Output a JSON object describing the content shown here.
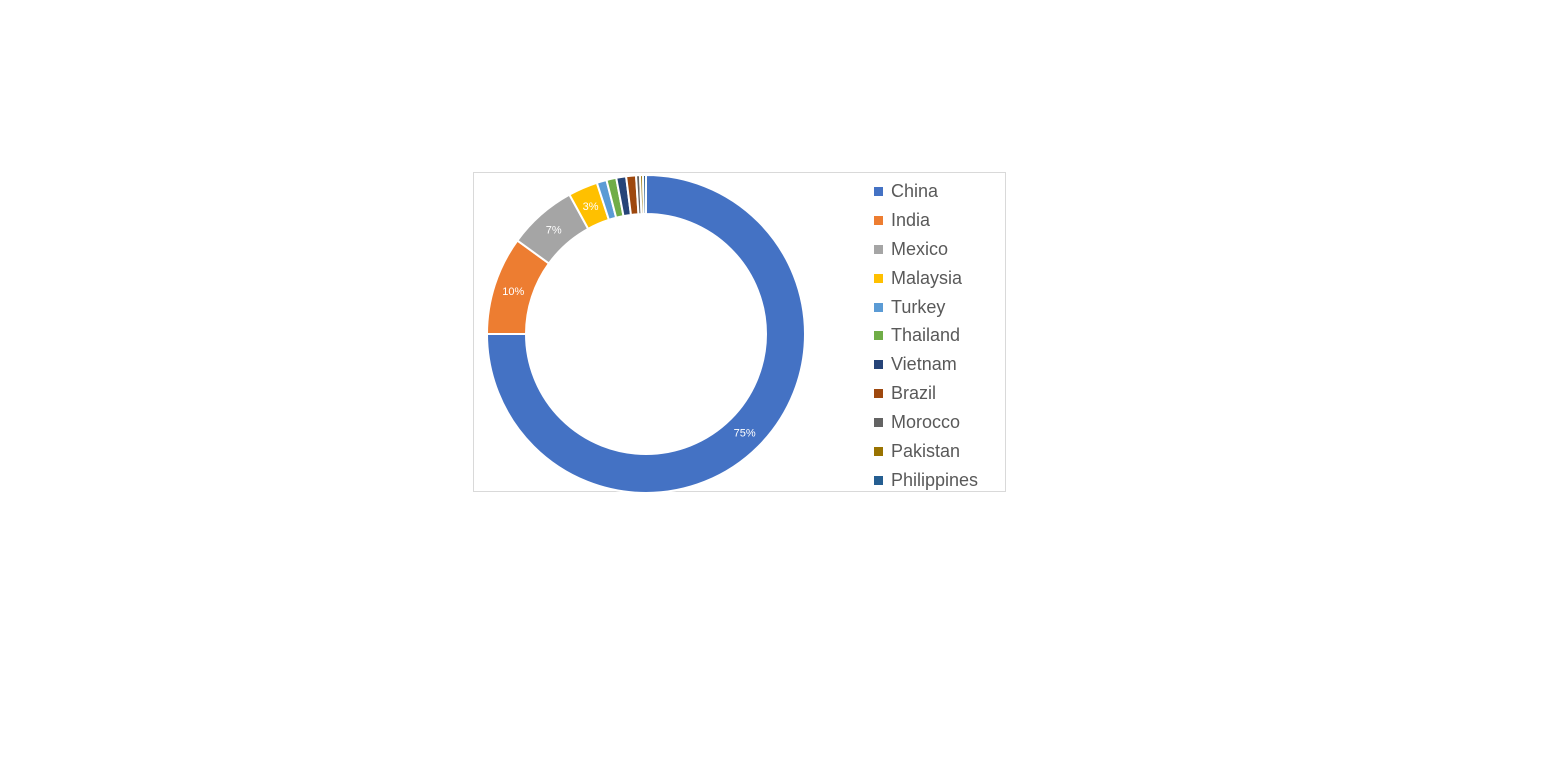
{
  "chart_data": {
    "type": "donut",
    "categories": [
      "China",
      "India",
      "Mexico",
      "Malaysia",
      "Turkey",
      "Thailand",
      "Vietnam",
      "Brazil",
      "Morocco",
      "Pakistan",
      "Philippines"
    ],
    "values": [
      75,
      10,
      7,
      3,
      1,
      1,
      1,
      1,
      0.4,
      0.3,
      0.3
    ],
    "data_labels": [
      "75%",
      "10%",
      "7%",
      "3%",
      "",
      "",
      "",
      "",
      "",
      "",
      ""
    ],
    "colors": [
      "#4472C4",
      "#ED7D31",
      "#A5A5A5",
      "#FFC000",
      "#5B9BD5",
      "#70AD47",
      "#264478",
      "#9E480E",
      "#636363",
      "#997300",
      "#255E91"
    ],
    "legend_position": "right",
    "unit": "%"
  }
}
